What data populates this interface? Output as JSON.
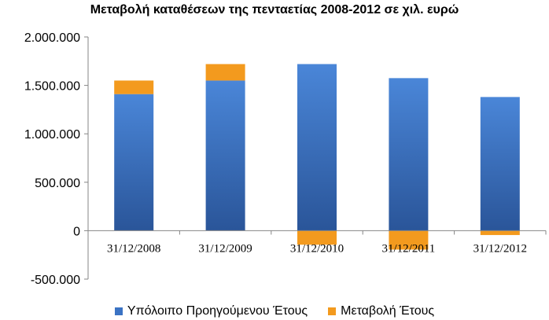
{
  "chart_data": {
    "type": "bar",
    "title": "Μεταβολή καταθέσεων της πενταετίας 2008-2012 σε χιλ. ευρώ",
    "categories": [
      "31/12/2008",
      "31/12/2009",
      "31/12/2010",
      "31/12/2011",
      "31/12/2012"
    ],
    "series": [
      {
        "name": "Υπόλοιπο Προηγούμενου Έτους",
        "values": [
          1410000,
          1550000,
          1720000,
          1575000,
          1380000
        ],
        "color": "#3b73c4"
      },
      {
        "name": "Μεταβολή Έτους",
        "values": [
          140000,
          170000,
          -145000,
          -195000,
          -45000
        ],
        "color": "#f39a1e"
      }
    ],
    "yticks": [
      "2.000.000",
      "1.500.000",
      "1.000.000",
      "500.000",
      "0",
      "-500.000"
    ],
    "ylim": [
      -500000,
      2000000
    ],
    "grid": false,
    "stacked": true,
    "legend": "bottom"
  }
}
